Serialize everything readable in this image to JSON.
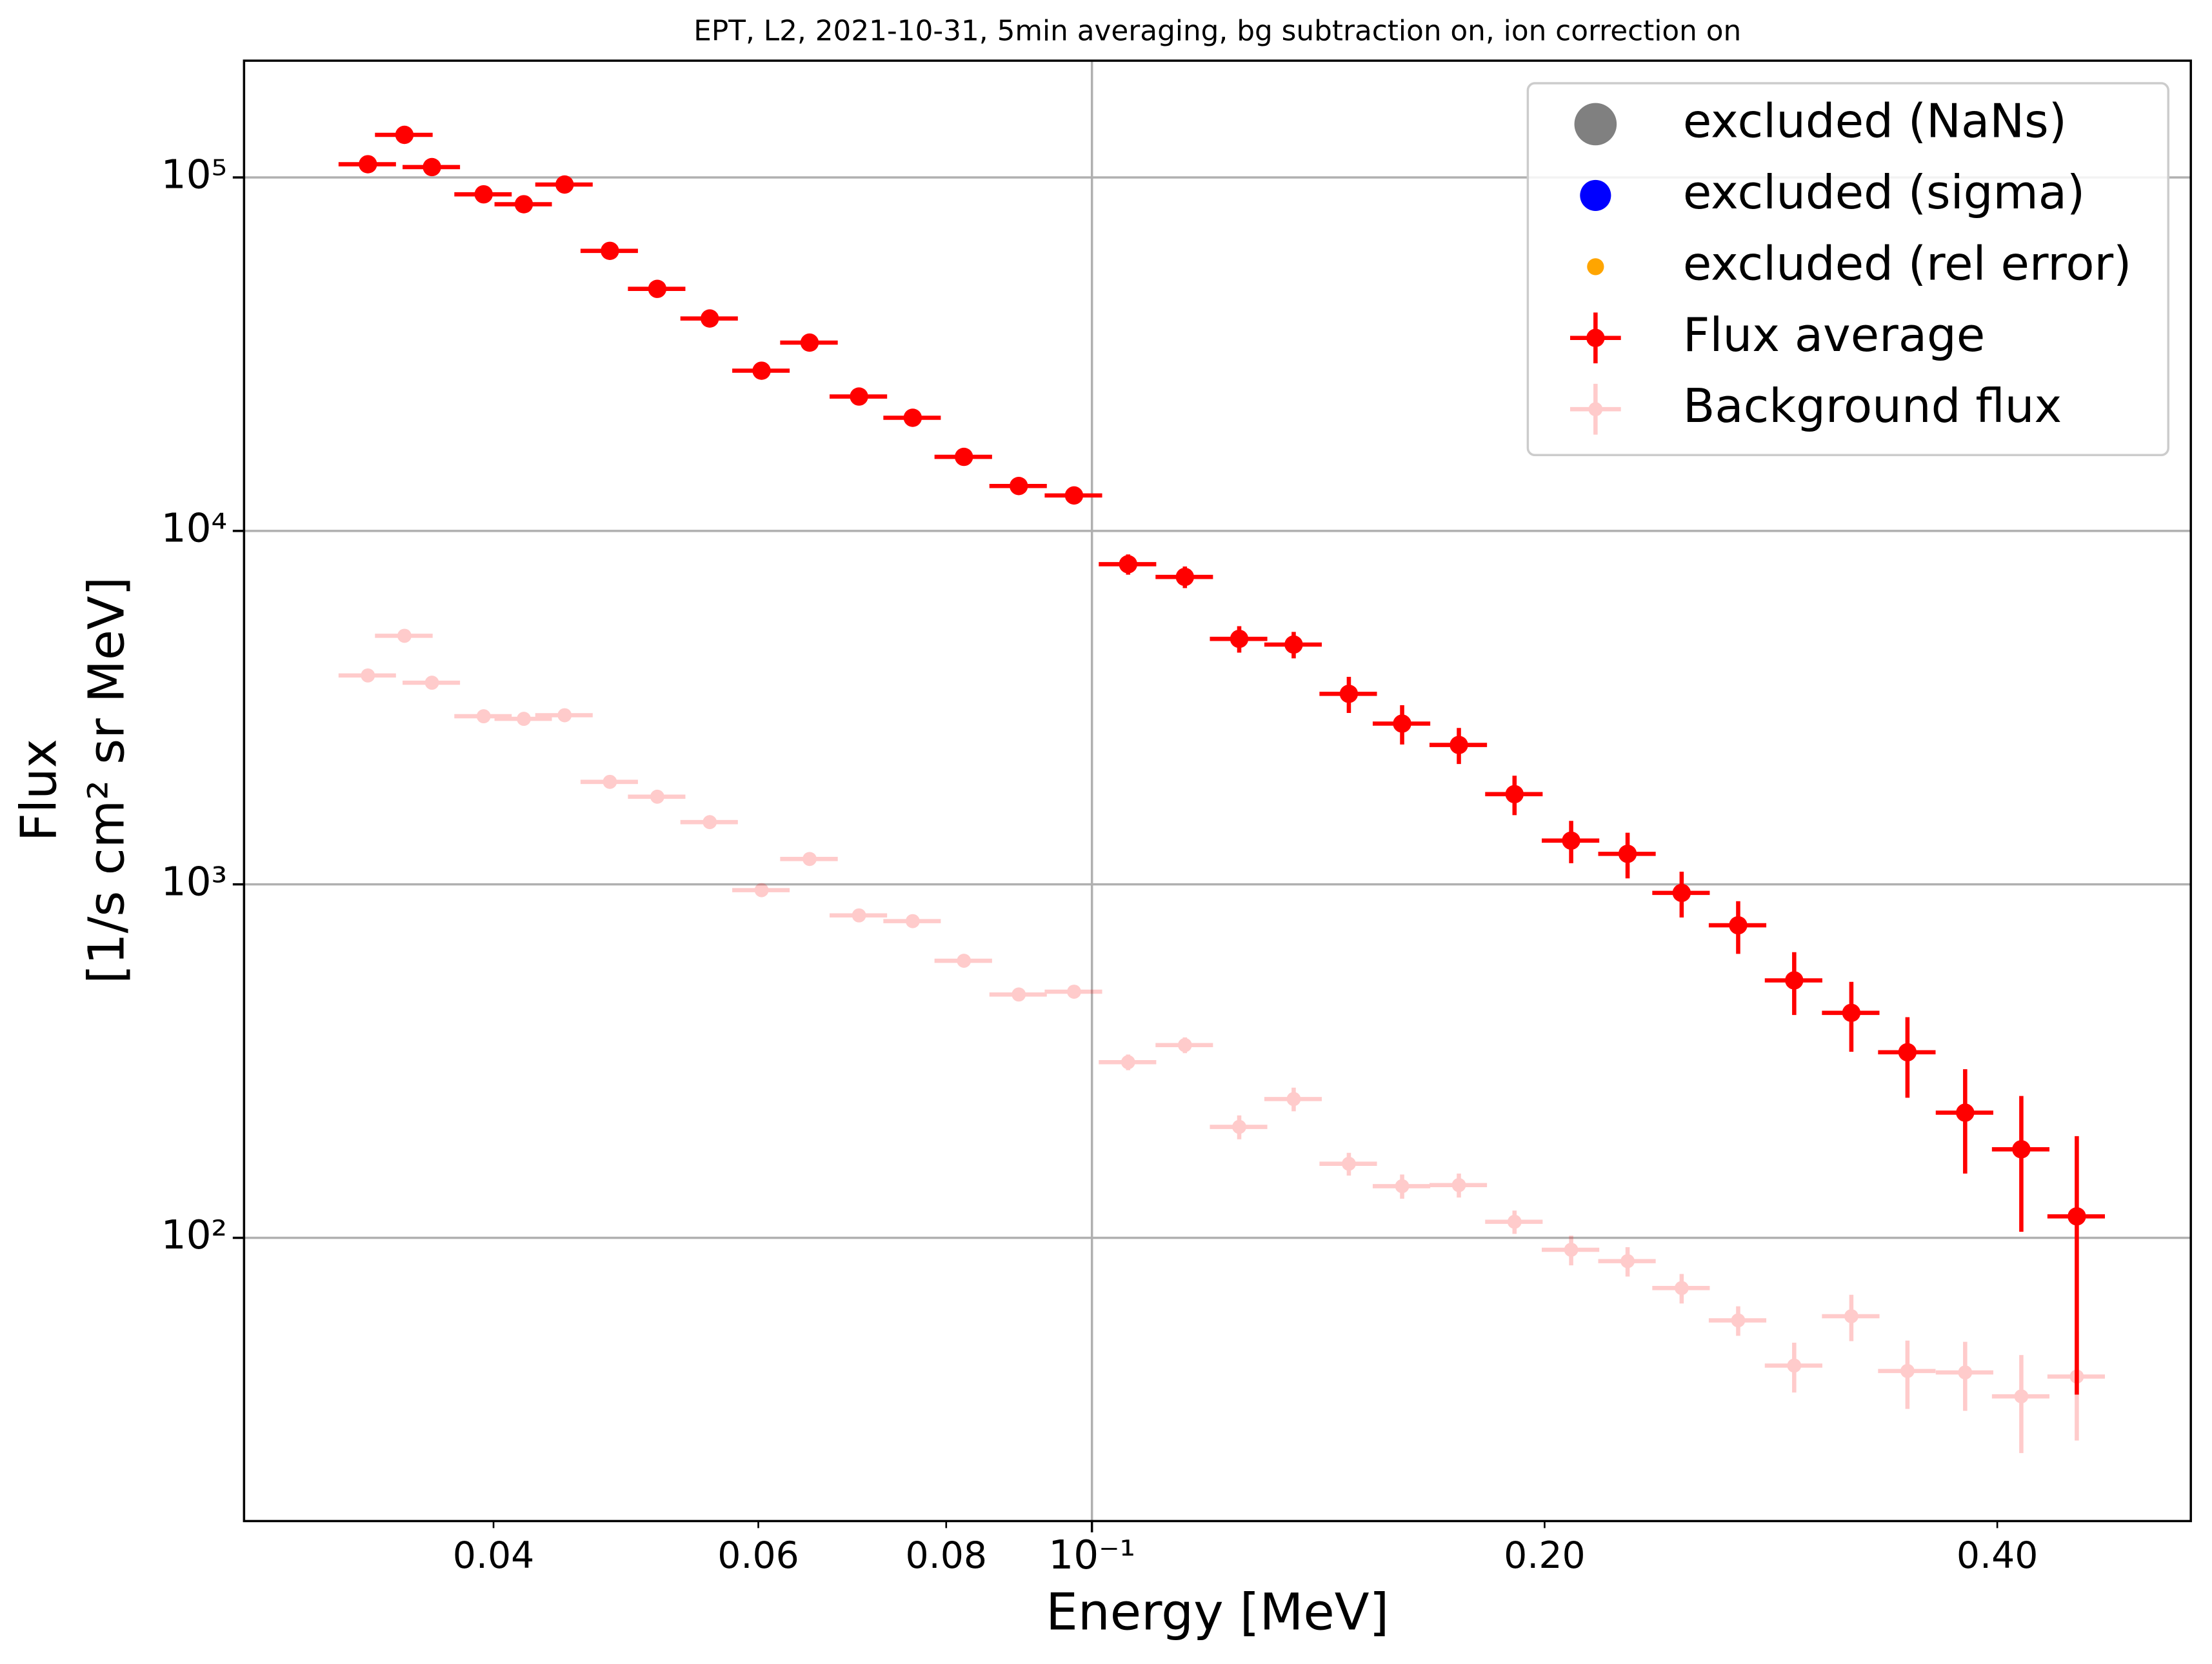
{
  "chart_data": {
    "type": "scatter",
    "title": "EPT, L2, 2021-10-31, 5min averaging, bg subtraction on, ion correction on",
    "xlabel": "Energy [MeV]",
    "ylabel": [
      "Flux",
      "[1/s cm² sr MeV]"
    ],
    "xscale": "log",
    "yscale": "log",
    "xlim": [
      0.0273,
      0.538
    ],
    "ylim": [
      15.8,
      214000
    ],
    "xticks": [
      {
        "value": 0.1,
        "label": "10⁻¹"
      }
    ],
    "xminorticks": [
      0.04,
      0.06,
      0.08,
      {
        "value": 0.2,
        "label": "0.20"
      },
      {
        "value": 0.4,
        "label": "0.40"
      }
    ],
    "yticks": [
      {
        "value": 100,
        "label": "10²"
      },
      {
        "value": 1000,
        "label": "10³"
      },
      {
        "value": 10000,
        "label": "10⁴"
      },
      {
        "value": 100000,
        "label": "10⁵"
      }
    ],
    "grid": true,
    "legend": "upper right",
    "x": [
      0.033,
      0.0349,
      0.0364,
      0.0394,
      0.0419,
      0.0446,
      0.0478,
      0.0514,
      0.0557,
      0.0603,
      0.0649,
      0.07,
      0.076,
      0.0822,
      0.0894,
      0.0973,
      0.1057,
      0.1153,
      0.1253,
      0.1362,
      0.1482,
      0.1608,
      0.1754,
      0.191,
      0.2083,
      0.2271,
      0.2467,
      0.269,
      0.2931,
      0.3199,
      0.3486,
      0.3808,
      0.415,
      0.4518
    ],
    "xerr": [
      0.00145,
      0.00154,
      0.0016,
      0.00173,
      0.00184,
      0.00196,
      0.0021,
      0.00226,
      0.00245,
      0.00265,
      0.00286,
      0.00308,
      0.00334,
      0.00362,
      0.00393,
      0.00428,
      0.00465,
      0.00507,
      0.00551,
      0.00599,
      0.00652,
      0.00708,
      0.00772,
      0.0084,
      0.00917,
      0.00999,
      0.01085,
      0.01184,
      0.0129,
      0.01408,
      0.01534,
      0.01676,
      0.01826,
      0.01988
    ],
    "series": [
      {
        "name": "excluded (NaNs)",
        "color": "#808080",
        "marker_size": 15,
        "opacity": 1,
        "values": [
          null,
          null,
          null,
          null,
          null,
          null,
          null,
          null,
          null,
          null,
          null,
          null,
          null,
          null,
          null,
          null,
          null,
          null,
          null,
          null,
          null,
          null,
          null,
          null,
          null,
          null,
          null,
          null,
          null,
          null,
          null,
          null,
          null,
          null
        ]
      },
      {
        "name": "excluded (sigma)",
        "color": "#0000ff",
        "marker_size": 11,
        "opacity": 1,
        "values": [
          null,
          null,
          null,
          null,
          null,
          null,
          null,
          null,
          null,
          null,
          null,
          null,
          null,
          null,
          null,
          null,
          null,
          null,
          null,
          null,
          null,
          null,
          null,
          null,
          null,
          null,
          null,
          null,
          null,
          null,
          null,
          null,
          null,
          null
        ]
      },
      {
        "name": "excluded (rel error)",
        "color": "#ffa500",
        "marker_size": 6,
        "opacity": 1,
        "values": [
          null,
          null,
          null,
          null,
          null,
          null,
          null,
          null,
          null,
          null,
          null,
          null,
          null,
          null,
          null,
          null,
          null,
          null,
          null,
          null,
          null,
          null,
          null,
          null,
          null,
          null,
          null,
          null,
          null,
          null,
          null,
          null,
          null,
          null
        ]
      },
      {
        "name": "Flux average",
        "color": "#ff0000",
        "marker_size": 6.5,
        "opacity": 1,
        "values": [
          109000,
          132000,
          107000,
          89600,
          84000,
          95500,
          62000,
          48400,
          39900,
          28400,
          34100,
          24000,
          20900,
          16200,
          13400,
          12600,
          8050,
          7410,
          4950,
          4770,
          3460,
          2850,
          2480,
          1800,
          1330,
          1220,
          946,
          766,
          535,
          433,
          335,
          226,
          178,
          115
        ],
        "yerr": [
          3270,
          3960,
          3210,
          2690,
          2520,
          2870,
          1860,
          1450,
          1200,
          850,
          1020,
          720,
          630,
          490,
          400,
          380,
          530,
          520,
          425,
          410,
          405,
          362,
          290,
          230,
          182,
          180,
          140,
          130,
          108,
          97,
          86,
          74,
          74,
          79
        ]
      },
      {
        "name": "Background flux",
        "color": "#ff0000",
        "marker_size": 5,
        "opacity": 0.2,
        "values": [
          3900,
          5050,
          3720,
          2990,
          2940,
          3010,
          1950,
          1770,
          1500,
          963,
          1180,
          817,
          787,
          608,
          488,
          497,
          314,
          351,
          206,
          247,
          162,
          140,
          141,
          111,
          92.5,
          85.9,
          72.1,
          58.4,
          43.5,
          60,
          42,
          41.6,
          35.6,
          40.5
        ],
        "yerr": [
          117,
          152,
          112,
          90,
          88,
          90,
          59,
          53,
          45,
          29,
          35,
          25,
          24,
          18,
          15,
          15,
          16,
          18,
          16,
          19,
          12,
          11,
          11,
          8.4,
          8.9,
          8.2,
          6.9,
          5.6,
          7,
          9,
          9.2,
          9.2,
          11,
          13.8
        ]
      }
    ]
  }
}
